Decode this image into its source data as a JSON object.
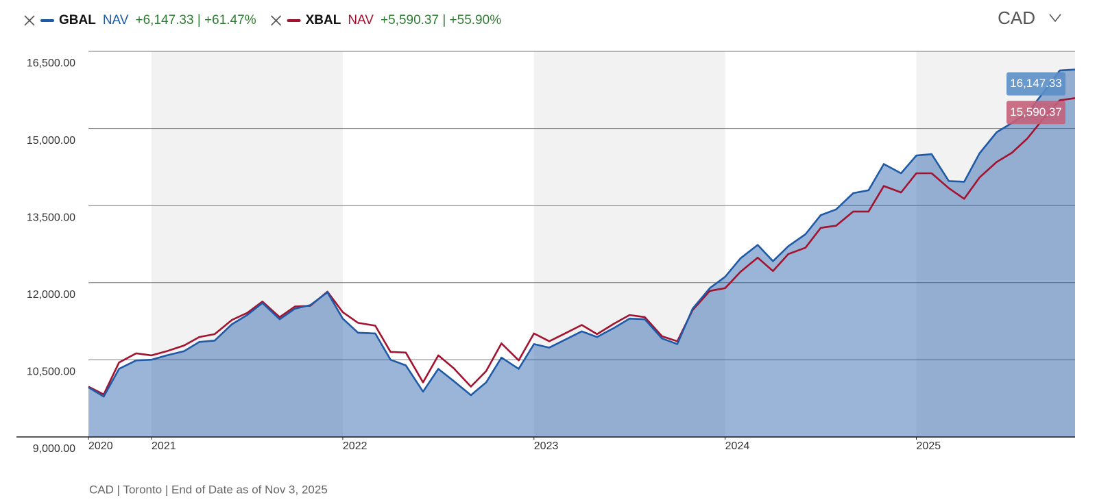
{
  "chart_data": {
    "type": "line",
    "currency": "CAD",
    "footer": "CAD | Toronto | End of Date as of Nov 3, 2025",
    "x": [
      2020.67,
      2020.75,
      2020.83,
      2020.92,
      2021,
      2021.08,
      2021.17,
      2021.25,
      2021.33,
      2021.42,
      2021.5,
      2021.58,
      2021.67,
      2021.75,
      2021.83,
      2021.92,
      2022,
      2022.08,
      2022.17,
      2022.25,
      2022.33,
      2022.42,
      2022.5,
      2022.58,
      2022.67,
      2022.75,
      2022.83,
      2022.92,
      2023,
      2023.08,
      2023.17,
      2023.25,
      2023.33,
      2023.42,
      2023.5,
      2023.58,
      2023.67,
      2023.75,
      2023.83,
      2023.92,
      2024,
      2024.08,
      2024.17,
      2024.25,
      2024.33,
      2024.42,
      2024.5,
      2024.58,
      2024.67,
      2024.75,
      2024.83,
      2024.92,
      2025,
      2025.08,
      2025.17,
      2025.25,
      2025.33,
      2025.42,
      2025.5,
      2025.58,
      2025.67,
      2025.75,
      2025.83
    ],
    "series": [
      {
        "name": "GBAL",
        "measure": "NAV",
        "change": "+6,147.33 | +61.47%",
        "color": "#1f5aa6",
        "fill": true,
        "last_label": "16,147.33",
        "label_color": "#5b8fc8",
        "values": [
          9965,
          9786,
          10324,
          10489,
          10503,
          10586,
          10668,
          10848,
          10875,
          11192,
          11371,
          11606,
          11289,
          11495,
          11564,
          11813,
          11302,
          11027,
          11013,
          10503,
          10392,
          9882,
          10324,
          10089,
          9813,
          10062,
          10544,
          10324,
          10806,
          10737,
          10903,
          11054,
          10944,
          11123,
          11302,
          11289,
          10916,
          10806,
          11495,
          11895,
          12116,
          12474,
          12736,
          12419,
          12709,
          12943,
          13315,
          13426,
          13743,
          13798,
          14308,
          14129,
          14474,
          14501,
          13977,
          13963,
          14515,
          14928,
          15108,
          15301,
          15728,
          16128,
          16147.33
        ]
      },
      {
        "name": "XBAL",
        "measure": "NAV",
        "change": "+5,590.37 | +55.90%",
        "color": "#a3122f",
        "fill": false,
        "last_label": "15,590.37",
        "label_color": "#c4607a",
        "values": [
          9979,
          9827,
          10448,
          10627,
          10586,
          10668,
          10779,
          10944,
          10999,
          11275,
          11413,
          11633,
          11330,
          11537,
          11551,
          11826,
          11427,
          11220,
          11165,
          10654,
          10641,
          10062,
          10586,
          10337,
          9979,
          10282,
          10820,
          10489,
          11013,
          10861,
          11027,
          11178,
          10999,
          11206,
          11371,
          11330,
          10958,
          10861,
          11468,
          11840,
          11895,
          12212,
          12488,
          12226,
          12557,
          12681,
          13067,
          13109,
          13384,
          13384,
          13881,
          13756,
          14129,
          14129,
          13839,
          13632,
          14046,
          14349,
          14529,
          14804,
          15218,
          15549,
          15590.37
        ]
      }
    ],
    "xlim": [
      2020.67,
      2025.83
    ],
    "xticks": [
      {
        "value": 2020.67,
        "label": "2020"
      },
      2021,
      2022,
      2023,
      2024,
      2025
    ],
    "ylim": [
      9000,
      16500
    ],
    "yticks": [
      {
        "value": 9000,
        "label": "9,000.00"
      },
      {
        "value": 10500,
        "label": "10,500.00"
      },
      {
        "value": 12000,
        "label": "12,000.00"
      },
      {
        "value": 13500,
        "label": "13,500.00"
      },
      {
        "value": 15000,
        "label": "15,000.00"
      },
      {
        "value": 16500,
        "label": "16,500.00"
      }
    ],
    "grid": true
  }
}
